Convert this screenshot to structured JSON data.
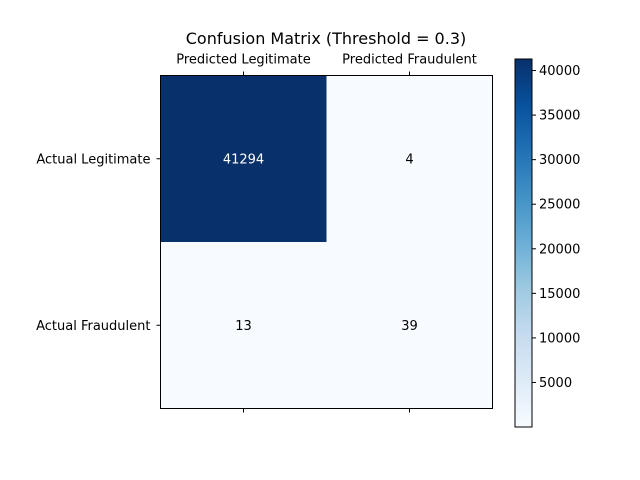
{
  "chart_data": {
    "type": "heatmap",
    "title": "Confusion Matrix (Threshold = 0.3)",
    "x_tick_labels": [
      "Predicted Legitimate",
      "Predicted Fraudulent"
    ],
    "y_tick_labels": [
      "Actual Legitimate",
      "Actual Fraudulent"
    ],
    "matrix": [
      [
        41294,
        4
      ],
      [
        13,
        39
      ]
    ],
    "colormap": "Blues",
    "colors": {
      "low": "#f7fbff",
      "high": "#08306b",
      "text_light": "#ffffff",
      "text_dark": "#000000"
    },
    "colorbar": {
      "vmin": 4,
      "vmax": 41294,
      "ticks": [
        5000,
        10000,
        15000,
        20000,
        25000,
        30000,
        35000,
        40000
      ],
      "tick_labels": [
        "5000",
        "10000",
        "15000",
        "20000",
        "25000",
        "30000",
        "35000",
        "40000"
      ]
    }
  }
}
